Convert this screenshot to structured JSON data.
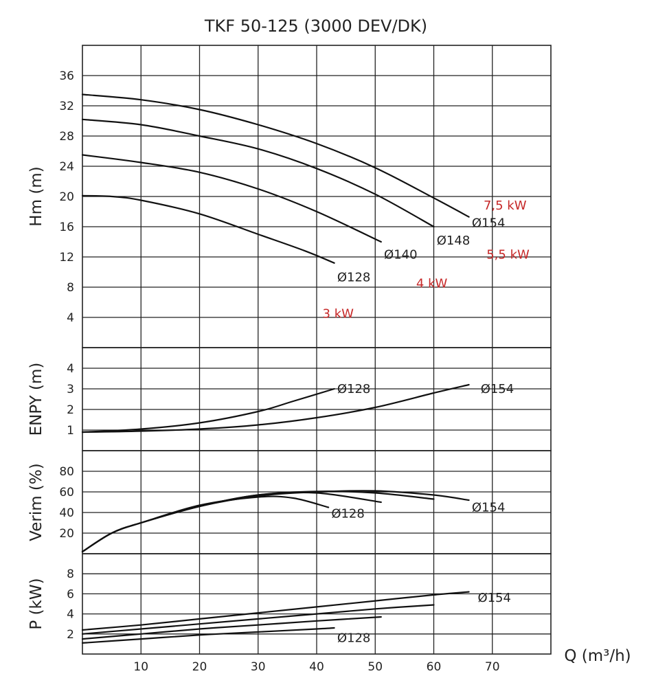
{
  "chart_data": {
    "type": "line",
    "title": "TKF 50-125 (3000 DEV/DK)",
    "xlabel": "Q (m³/h)",
    "xlim": [
      0,
      80
    ],
    "x_ticks": [
      10,
      20,
      30,
      40,
      50,
      60,
      70
    ],
    "panels": [
      {
        "id": "head",
        "ylabel": "Hm (m)",
        "ylim": [
          0,
          40
        ],
        "y_ticks": [
          4,
          8,
          12,
          16,
          20,
          24,
          28,
          32,
          36
        ],
        "series": [
          {
            "name": "Ø154",
            "x": [
              0,
              10,
              20,
              30,
              40,
              50,
              60,
              66
            ],
            "y": [
              33.5,
              32.8,
              31.5,
              29.5,
              27.0,
              23.8,
              19.8,
              17.3
            ]
          },
          {
            "name": "Ø148",
            "x": [
              0,
              10,
              20,
              30,
              40,
              50,
              60
            ],
            "y": [
              30.2,
              29.5,
              28.0,
              26.3,
              23.7,
              20.3,
              16.0
            ]
          },
          {
            "name": "Ø140",
            "x": [
              0,
              10,
              20,
              30,
              40,
              51
            ],
            "y": [
              25.5,
              24.5,
              23.2,
              21.0,
              18.0,
              14.0
            ]
          },
          {
            "name": "Ø128",
            "x": [
              0,
              5,
              10,
              20,
              30,
              38,
              43
            ],
            "y": [
              20.1,
              20.0,
              19.5,
              17.7,
              15.0,
              12.8,
              11.2
            ]
          }
        ],
        "curve_labels": [
          {
            "text": "Ø154",
            "x": 66.5,
            "y": 16.5
          },
          {
            "text": "Ø148",
            "x": 60.5,
            "y": 14.2
          },
          {
            "text": "Ø140",
            "x": 51.5,
            "y": 12.3
          },
          {
            "text": "Ø128",
            "x": 43.5,
            "y": 9.3
          }
        ],
        "power_labels": [
          {
            "text": "7,5 kW",
            "x": 68.5,
            "y": 18.8
          },
          {
            "text": "5,5 kW",
            "x": 69.0,
            "y": 12.3
          },
          {
            "text": "4 kW",
            "x": 57.0,
            "y": 8.5
          },
          {
            "text": "3 kW",
            "x": 41.0,
            "y": 4.5
          }
        ]
      },
      {
        "id": "npsh",
        "ylabel": "ENPY (m)",
        "ylim": [
          0,
          5
        ],
        "y_ticks": [
          1,
          2,
          3,
          4
        ],
        "series": [
          {
            "name": "Ø128",
            "x": [
              0,
              10,
              20,
              30,
              36,
              43
            ],
            "y": [
              0.9,
              1.05,
              1.35,
              1.9,
              2.4,
              3.0
            ]
          },
          {
            "name": "Ø154",
            "x": [
              0,
              10,
              20,
              30,
              40,
              50,
              60,
              66
            ],
            "y": [
              0.9,
              0.95,
              1.05,
              1.25,
              1.6,
              2.1,
              2.8,
              3.2
            ]
          }
        ],
        "curve_labels": [
          {
            "text": "Ø128",
            "x": 43.5,
            "y": 3.0
          },
          {
            "text": "Ø154",
            "x": 68.0,
            "y": 3.0
          }
        ]
      },
      {
        "id": "efficiency",
        "ylabel": "Verim (%)",
        "ylim": [
          0,
          100
        ],
        "y_ticks": [
          20,
          40,
          60,
          80
        ],
        "series": [
          {
            "name": "Ø154",
            "x": [
              0,
              5,
              10,
              20,
              30,
              40,
              50,
              60,
              66
            ],
            "y": [
              2,
              20,
              30,
              46,
              56,
              60,
              61,
              57,
              52
            ]
          },
          {
            "name": "Ø148",
            "x": [
              0,
              5,
              10,
              20,
              30,
              40,
              50,
              60
            ],
            "y": [
              2,
              20,
              30,
              46,
              57,
              60.5,
              59,
              53
            ]
          },
          {
            "name": "Ø140",
            "x": [
              0,
              5,
              10,
              20,
              30,
              40,
              51
            ],
            "y": [
              2,
              20,
              30,
              46,
              57,
              59,
              50
            ]
          },
          {
            "name": "Ø128",
            "x": [
              0,
              5,
              10,
              20,
              30,
              36,
              42
            ],
            "y": [
              2,
              20,
              30,
              47,
              55,
              54,
              45
            ]
          }
        ],
        "curve_labels": [
          {
            "text": "Ø128",
            "x": 42.5,
            "y": 39
          },
          {
            "text": "Ø154",
            "x": 66.5,
            "y": 45
          }
        ]
      },
      {
        "id": "power",
        "ylabel": "P (kW)",
        "ylim": [
          0,
          10
        ],
        "y_ticks": [
          2,
          4,
          6,
          8
        ],
        "series": [
          {
            "name": "Ø154",
            "x": [
              0,
              10,
              20,
              30,
              40,
              50,
              60,
              66
            ],
            "y": [
              2.4,
              2.9,
              3.5,
              4.1,
              4.7,
              5.3,
              5.9,
              6.2
            ]
          },
          {
            "name": "Ø148",
            "x": [
              0,
              10,
              20,
              30,
              40,
              50,
              60
            ],
            "y": [
              2.0,
              2.5,
              3.0,
              3.5,
              4.0,
              4.5,
              4.9
            ]
          },
          {
            "name": "Ø140",
            "x": [
              0,
              10,
              20,
              30,
              40,
              51
            ],
            "y": [
              1.5,
              2.0,
              2.5,
              2.9,
              3.3,
              3.7
            ]
          },
          {
            "name": "Ø128",
            "x": [
              0,
              10,
              20,
              30,
              40,
              43
            ],
            "y": [
              1.1,
              1.5,
              1.9,
              2.2,
              2.5,
              2.6
            ]
          }
        ],
        "curve_labels": [
          {
            "text": "Ø154",
            "x": 67.5,
            "y": 5.6
          },
          {
            "text": "Ø128",
            "x": 43.5,
            "y": 1.6
          }
        ]
      }
    ]
  }
}
